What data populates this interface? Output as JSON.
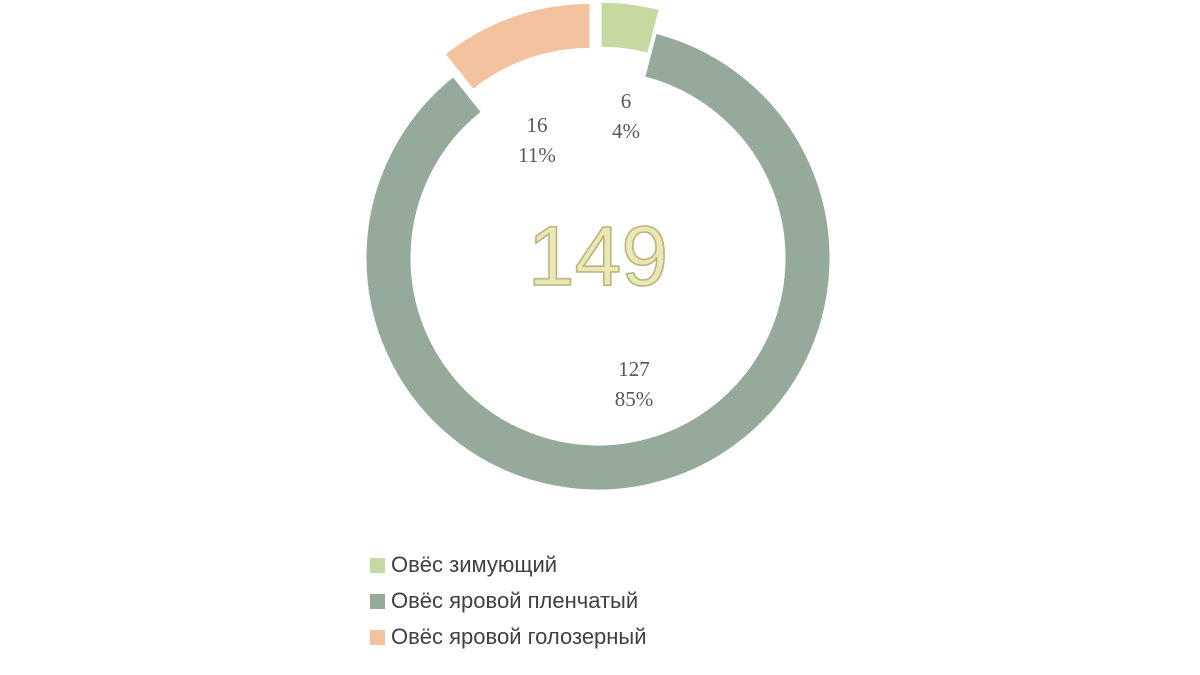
{
  "chart_data": {
    "type": "pie",
    "total": "149",
    "categories": [
      "Овёс зимующий",
      "Овёс яровой пленчатый",
      "Овёс яровой голозерный"
    ],
    "values": [
      6,
      127,
      16
    ],
    "percent_labels": [
      "4%",
      "85%",
      "11%"
    ],
    "value_labels": [
      "6",
      "127",
      "16"
    ],
    "colors": [
      "#c5d9a0",
      "#95aa9b",
      "#f3c3a0"
    ],
    "exploded": [
      true,
      false,
      true
    ],
    "legend_position": "bottom"
  }
}
